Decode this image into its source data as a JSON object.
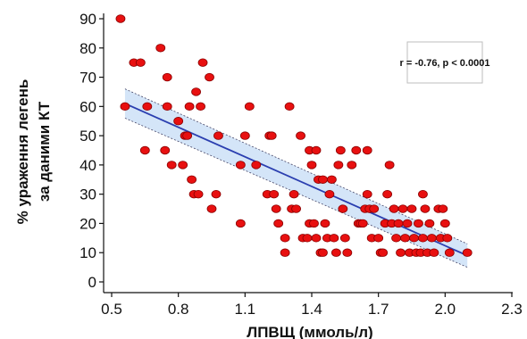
{
  "chart_data": {
    "type": "scatter",
    "title": "",
    "xlabel": "ЛПВЩ (ммоль/л)",
    "ylabel_lines": [
      "% ураження легень",
      "за даними КТ"
    ],
    "xlim": [
      0.5,
      2.3
    ],
    "ylim": [
      0,
      90
    ],
    "xticks": [
      "0.5",
      "0.8",
      "1.1",
      "1.4",
      "1.7",
      "2.0",
      "2.3"
    ],
    "yticks": [
      "0",
      "10",
      "20",
      "30",
      "40",
      "50",
      "60",
      "70",
      "80",
      "90"
    ],
    "grid": false,
    "annotation": "r = -0.76, p < 0.0001",
    "regression": {
      "x": [
        0.56,
        2.1
      ],
      "y": [
        61,
        9
      ],
      "ci_start": [
        56,
        66
      ],
      "ci_end": [
        5,
        13
      ]
    },
    "points": [
      [
        0.54,
        90
      ],
      [
        0.56,
        60
      ],
      [
        0.6,
        75
      ],
      [
        0.63,
        75
      ],
      [
        0.65,
        45
      ],
      [
        0.66,
        60
      ],
      [
        0.72,
        80
      ],
      [
        0.74,
        45
      ],
      [
        0.75,
        60
      ],
      [
        0.75,
        70
      ],
      [
        0.77,
        40
      ],
      [
        0.8,
        55
      ],
      [
        0.82,
        40
      ],
      [
        0.83,
        50
      ],
      [
        0.84,
        50
      ],
      [
        0.85,
        60
      ],
      [
        0.86,
        35
      ],
      [
        0.87,
        30
      ],
      [
        0.88,
        65
      ],
      [
        0.89,
        30
      ],
      [
        0.9,
        60
      ],
      [
        0.91,
        75
      ],
      [
        0.94,
        70
      ],
      [
        0.95,
        25
      ],
      [
        0.97,
        30
      ],
      [
        0.98,
        50
      ],
      [
        1.08,
        20
      ],
      [
        1.08,
        40
      ],
      [
        1.1,
        50
      ],
      [
        1.12,
        60
      ],
      [
        1.15,
        40
      ],
      [
        1.2,
        30
      ],
      [
        1.21,
        50
      ],
      [
        1.22,
        50
      ],
      [
        1.23,
        30
      ],
      [
        1.24,
        25
      ],
      [
        1.25,
        20
      ],
      [
        1.28,
        10
      ],
      [
        1.28,
        15
      ],
      [
        1.3,
        60
      ],
      [
        1.31,
        25
      ],
      [
        1.32,
        30
      ],
      [
        1.33,
        25
      ],
      [
        1.35,
        50
      ],
      [
        1.36,
        15
      ],
      [
        1.38,
        15
      ],
      [
        1.39,
        45
      ],
      [
        1.39,
        20
      ],
      [
        1.4,
        40
      ],
      [
        1.41,
        20
      ],
      [
        1.42,
        45
      ],
      [
        1.42,
        15
      ],
      [
        1.43,
        35
      ],
      [
        1.44,
        10
      ],
      [
        1.45,
        35
      ],
      [
        1.45,
        10
      ],
      [
        1.46,
        20
      ],
      [
        1.47,
        15
      ],
      [
        1.48,
        30
      ],
      [
        1.49,
        35
      ],
      [
        1.5,
        15
      ],
      [
        1.51,
        10
      ],
      [
        1.52,
        40
      ],
      [
        1.53,
        45
      ],
      [
        1.54,
        25
      ],
      [
        1.55,
        15
      ],
      [
        1.56,
        10
      ],
      [
        1.58,
        40
      ],
      [
        1.6,
        45
      ],
      [
        1.61,
        20
      ],
      [
        1.62,
        20
      ],
      [
        1.63,
        20
      ],
      [
        1.64,
        25
      ],
      [
        1.65,
        30
      ],
      [
        1.65,
        45
      ],
      [
        1.66,
        25
      ],
      [
        1.67,
        15
      ],
      [
        1.68,
        25
      ],
      [
        1.7,
        15
      ],
      [
        1.71,
        10
      ],
      [
        1.72,
        10
      ],
      [
        1.73,
        20
      ],
      [
        1.74,
        30
      ],
      [
        1.75,
        40
      ],
      [
        1.76,
        20
      ],
      [
        1.77,
        25
      ],
      [
        1.78,
        15
      ],
      [
        1.79,
        20
      ],
      [
        1.8,
        10
      ],
      [
        1.81,
        25
      ],
      [
        1.82,
        15
      ],
      [
        1.83,
        20
      ],
      [
        1.84,
        10
      ],
      [
        1.85,
        25
      ],
      [
        1.86,
        15
      ],
      [
        1.87,
        10
      ],
      [
        1.88,
        20
      ],
      [
        1.89,
        10
      ],
      [
        1.9,
        30
      ],
      [
        1.9,
        15
      ],
      [
        1.91,
        25
      ],
      [
        1.92,
        10
      ],
      [
        1.93,
        20
      ],
      [
        1.94,
        15
      ],
      [
        1.95,
        10
      ],
      [
        1.97,
        25
      ],
      [
        1.98,
        15
      ],
      [
        1.99,
        25
      ],
      [
        2.0,
        20
      ],
      [
        2.01,
        15
      ],
      [
        2.02,
        10
      ],
      [
        2.1,
        10
      ]
    ],
    "colors": {
      "point_fill": "#e81010",
      "point_stroke": "#8a0000",
      "line": "#2b3fb0",
      "band": "#cfe2f7",
      "band_edge": "#444466"
    }
  }
}
